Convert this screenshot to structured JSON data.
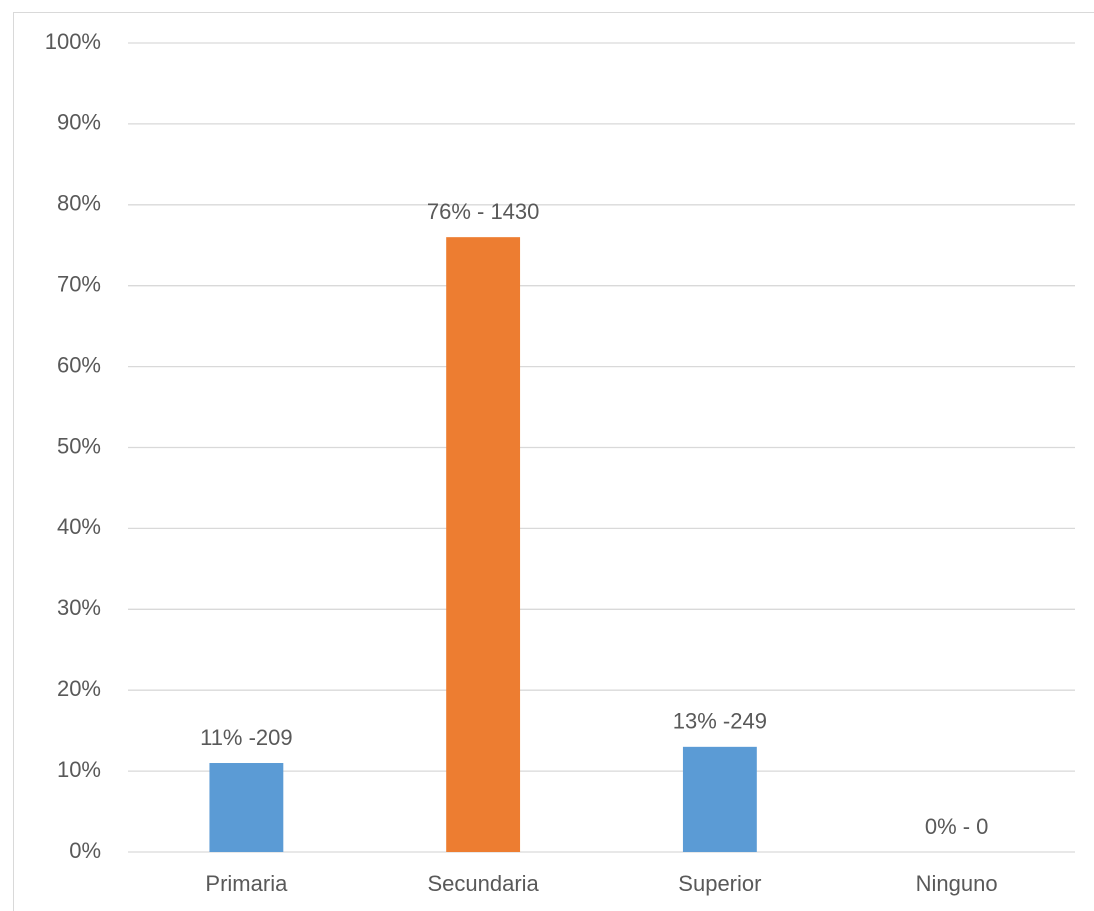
{
  "chart_data": {
    "type": "bar",
    "categories": [
      "Primaria",
      "Secundaria",
      "Superior",
      "Ninguno"
    ],
    "values": [
      11,
      76,
      13,
      0
    ],
    "value_labels": [
      "11% -209",
      "76% - 1430",
      "13% -249",
      "0% - 0"
    ],
    "colors": [
      "#5b9bd5",
      "#ed7d31",
      "#5b9bd5",
      "#5b9bd5"
    ],
    "ylim": [
      0,
      100
    ],
    "yticks": [
      {
        "value": 0,
        "label": "0%"
      },
      {
        "value": 10,
        "label": "10%"
      },
      {
        "value": 20,
        "label": "20%"
      },
      {
        "value": 30,
        "label": "30%"
      },
      {
        "value": 40,
        "label": "40%"
      },
      {
        "value": 50,
        "label": "50%"
      },
      {
        "value": 60,
        "label": "60%"
      },
      {
        "value": 70,
        "label": "70%"
      },
      {
        "value": 80,
        "label": "80%"
      },
      {
        "value": 90,
        "label": "90%"
      },
      {
        "value": 100,
        "label": "100%"
      }
    ],
    "grid": true
  }
}
